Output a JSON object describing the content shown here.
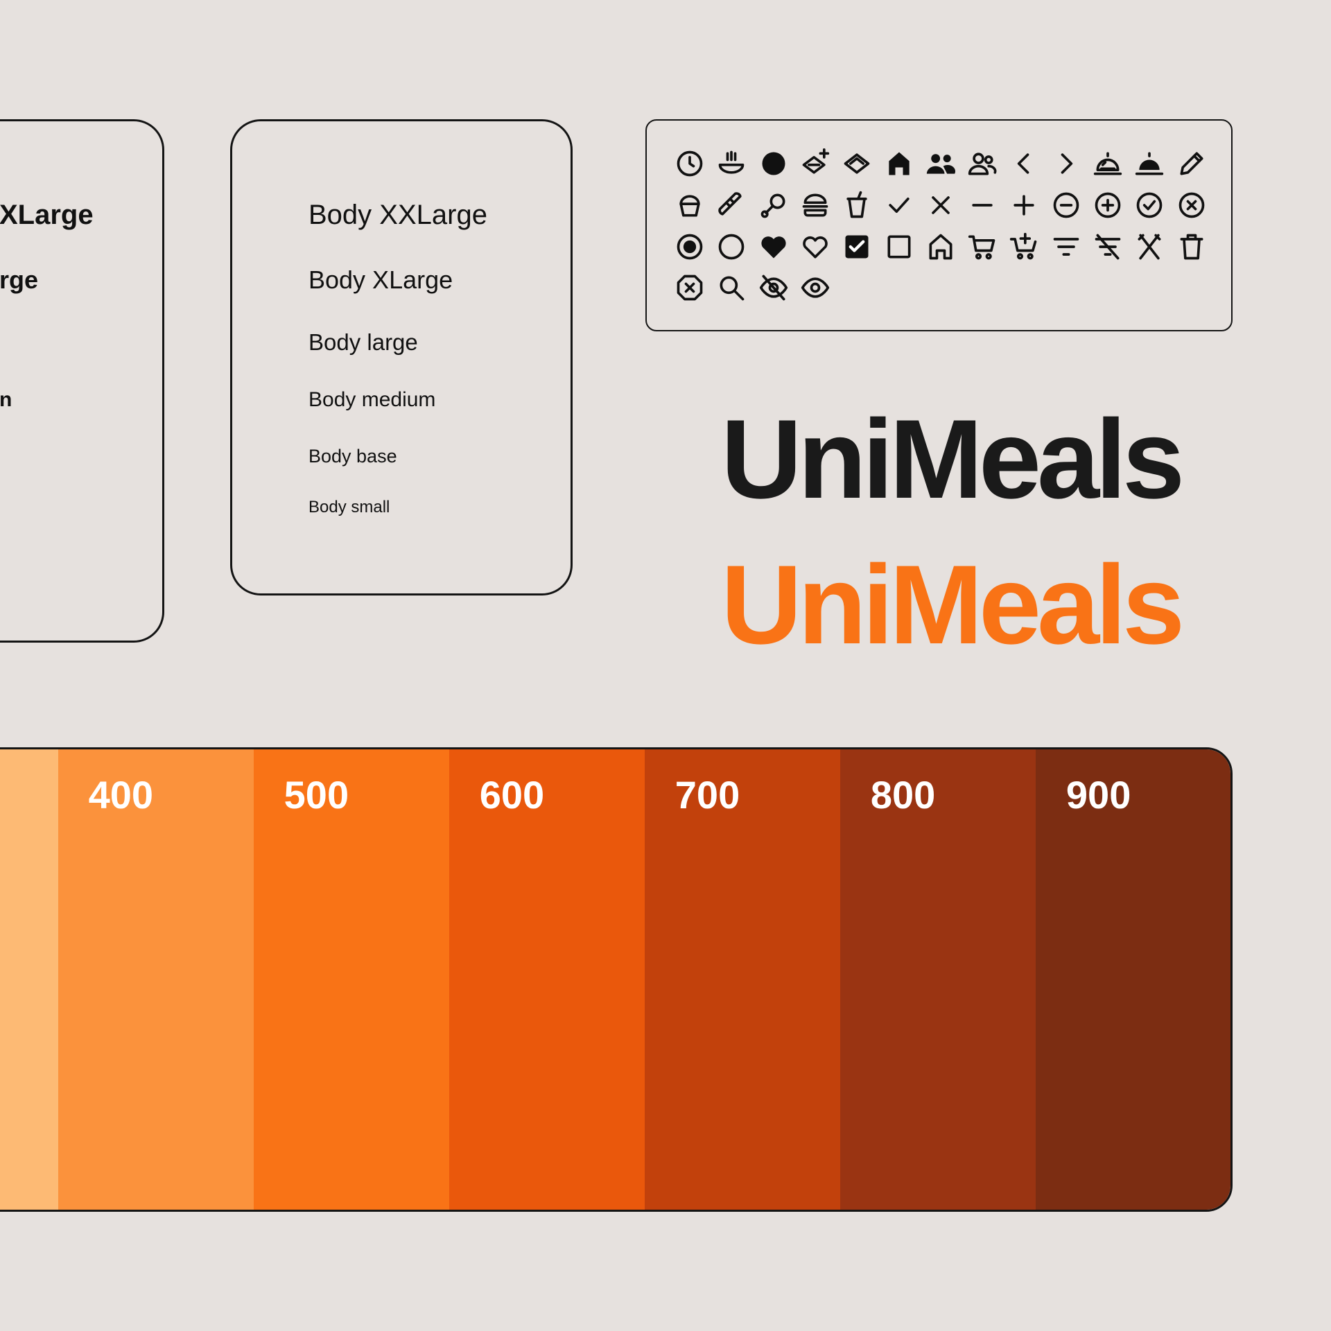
{
  "left_card": {
    "labels": [
      "XLarge",
      "rge",
      "n"
    ]
  },
  "body_card": {
    "styles": [
      {
        "label": "Body XXLarge"
      },
      {
        "label": "Body XLarge"
      },
      {
        "label": "Body large"
      },
      {
        "label": "Body medium"
      },
      {
        "label": "Body base"
      },
      {
        "label": "Body small"
      }
    ]
  },
  "icon_panel": {
    "icons": [
      "clock-icon",
      "bowl-steam-icon",
      "filled-circle-icon",
      "dish-add-icon",
      "dish-icon",
      "home-filled-icon",
      "users-filled-icon",
      "users-outline-icon",
      "chevron-left-icon",
      "chevron-right-icon",
      "cloche-outline-icon",
      "cloche-filled-icon",
      "pencil-icon",
      "cupcake-icon",
      "bread-icon",
      "drumstick-icon",
      "burger-icon",
      "drink-cup-icon",
      "check-icon",
      "close-icon",
      "minus-icon",
      "plus-icon",
      "minus-circle-icon",
      "plus-circle-icon",
      "check-circle-icon",
      "close-circle-icon",
      "radio-selected-icon",
      "radio-empty-icon",
      "heart-filled-icon",
      "heart-outline-icon",
      "checkbox-checked-icon",
      "checkbox-empty-icon",
      "home-outline-icon",
      "cart-icon",
      "cart-add-icon",
      "filter-icon",
      "filter-off-icon",
      "cutlery-icon",
      "trash-icon",
      "close-octagon-icon",
      "search-icon",
      "eye-off-icon",
      "eye-icon"
    ]
  },
  "brand": {
    "dark": {
      "text": "UniMeals",
      "color": "#1A1A1A"
    },
    "orange": {
      "text": "UniMeals",
      "color": "#F97316"
    }
  },
  "palette": {
    "swatches": [
      {
        "label": "",
        "color": "#FDBA74"
      },
      {
        "label": "400",
        "color": "#FB923C"
      },
      {
        "label": "500",
        "color": "#F97316"
      },
      {
        "label": "600",
        "color": "#EA580C"
      },
      {
        "label": "700",
        "color": "#C2410C"
      },
      {
        "label": "800",
        "color": "#9A3412"
      },
      {
        "label": "900",
        "color": "#7C2D12"
      }
    ]
  }
}
